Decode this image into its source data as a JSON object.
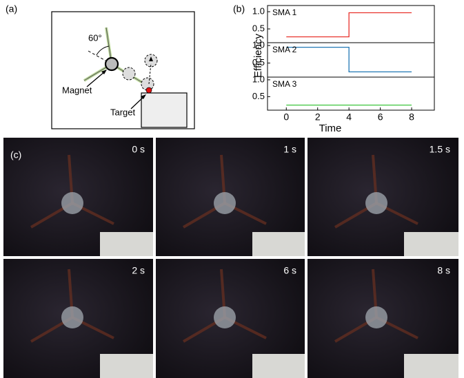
{
  "panel_labels": [
    "(a)",
    "(b)",
    "(c)"
  ],
  "diagram": {
    "angle": "60°",
    "magnet": "Magnet",
    "target": "Target"
  },
  "chart_data": [
    {
      "type": "line",
      "x": [
        0,
        4,
        4,
        8
      ],
      "xlim": [
        -1.2,
        9.45
      ],
      "ylim": [
        0.1,
        1.18
      ],
      "yticks": [
        {
          "value": 1,
          "label": "1.0"
        },
        0.5
      ],
      "series": [
        {
          "name": "SMA 1",
          "color": "#e8302a",
          "values": [
            0.27,
            0.27,
            0.97,
            0.97
          ]
        }
      ]
    },
    {
      "type": "line",
      "x": [
        0,
        4,
        4,
        8
      ],
      "xlim": [
        -1.2,
        9.45
      ],
      "ylim": [
        0.1,
        1.08
      ],
      "ylabel": "Efficiency",
      "yticks": [
        {
          "value": 1,
          "label": "1.0"
        },
        0.5
      ],
      "series": [
        {
          "name": "SMA 2",
          "color": "#1f77b4",
          "values": [
            0.95,
            0.95,
            0.25,
            0.25
          ]
        }
      ]
    },
    {
      "type": "line",
      "x": [
        0,
        8
      ],
      "xlim": [
        -1.2,
        9.45
      ],
      "ylim": [
        0.1,
        1.08
      ],
      "xlabel": "Time",
      "yticks": [
        {
          "value": 1,
          "label": "1.0"
        },
        0.5
      ],
      "xticks": [
        0,
        2,
        4,
        6,
        8
      ],
      "series": [
        {
          "name": "SMA 3",
          "color": "#3cc43c",
          "values": [
            0.25,
            0.25
          ]
        }
      ]
    }
  ],
  "photos": [
    "0 s",
    "1 s",
    "1.5 s",
    "2 s",
    "6 s",
    "8 s"
  ]
}
